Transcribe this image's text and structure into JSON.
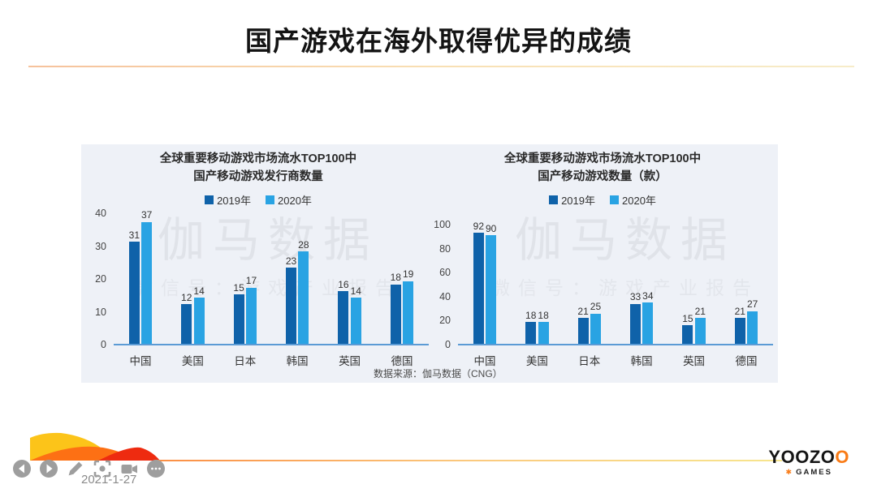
{
  "slide": {
    "title": "国产游戏在海外取得优异的成绩",
    "date": "2021-1-27"
  },
  "watermark": {
    "line1": "伽马数据",
    "line2": "微信号：游戏产业报告"
  },
  "source_note": "数据来源：伽马数据（CNG）",
  "colors": {
    "series_2019": "#0f62a9",
    "series_2020": "#29a3e3",
    "axis_line": "#5b9bd5",
    "panel_bg": "#eef1f7",
    "accent_yellow": "#fcc419",
    "accent_orange": "#fd7014",
    "accent_red": "#ee2b10",
    "logo_orange": "#f97b16"
  },
  "chart_data": [
    {
      "type": "bar",
      "title_line1": "全球重要移动游戏市场流水TOP100中",
      "title_line2": "国产移动游戏发行商数量",
      "categories": [
        "中国",
        "美国",
        "日本",
        "韩国",
        "英国",
        "德国"
      ],
      "series": [
        {
          "name": "2019年",
          "values": [
            31,
            12,
            15,
            23,
            16,
            18
          ]
        },
        {
          "name": "2020年",
          "values": [
            37,
            14,
            17,
            28,
            14,
            19
          ]
        }
      ],
      "ylim": [
        0,
        40
      ],
      "yticks": [
        0,
        10,
        20,
        30,
        40
      ],
      "legend_position": "top",
      "grid": false
    },
    {
      "type": "bar",
      "title_line1": "全球重要移动游戏市场流水TOP100中",
      "title_line2": "国产移动游戏数量（款）",
      "categories": [
        "中国",
        "美国",
        "日本",
        "韩国",
        "英国",
        "德国"
      ],
      "series": [
        {
          "name": "2019年",
          "values": [
            92,
            18,
            21,
            33,
            15,
            21
          ]
        },
        {
          "name": "2020年",
          "values": [
            90,
            18,
            25,
            34,
            21,
            27
          ]
        }
      ],
      "ylim": [
        0,
        100
      ],
      "yticks": [
        0,
        20,
        40,
        60,
        80,
        100
      ],
      "legend_position": "top",
      "grid": false
    }
  ],
  "player_controls": [
    {
      "icon": "previous-icon"
    },
    {
      "icon": "play-icon"
    },
    {
      "icon": "edit-pen-icon"
    },
    {
      "icon": "screenshot-icon"
    },
    {
      "icon": "record-video-icon"
    },
    {
      "icon": "more-icon"
    }
  ],
  "logo": {
    "brand_black": "YOOZO",
    "brand_orange": "O",
    "sub": "GAMES"
  }
}
